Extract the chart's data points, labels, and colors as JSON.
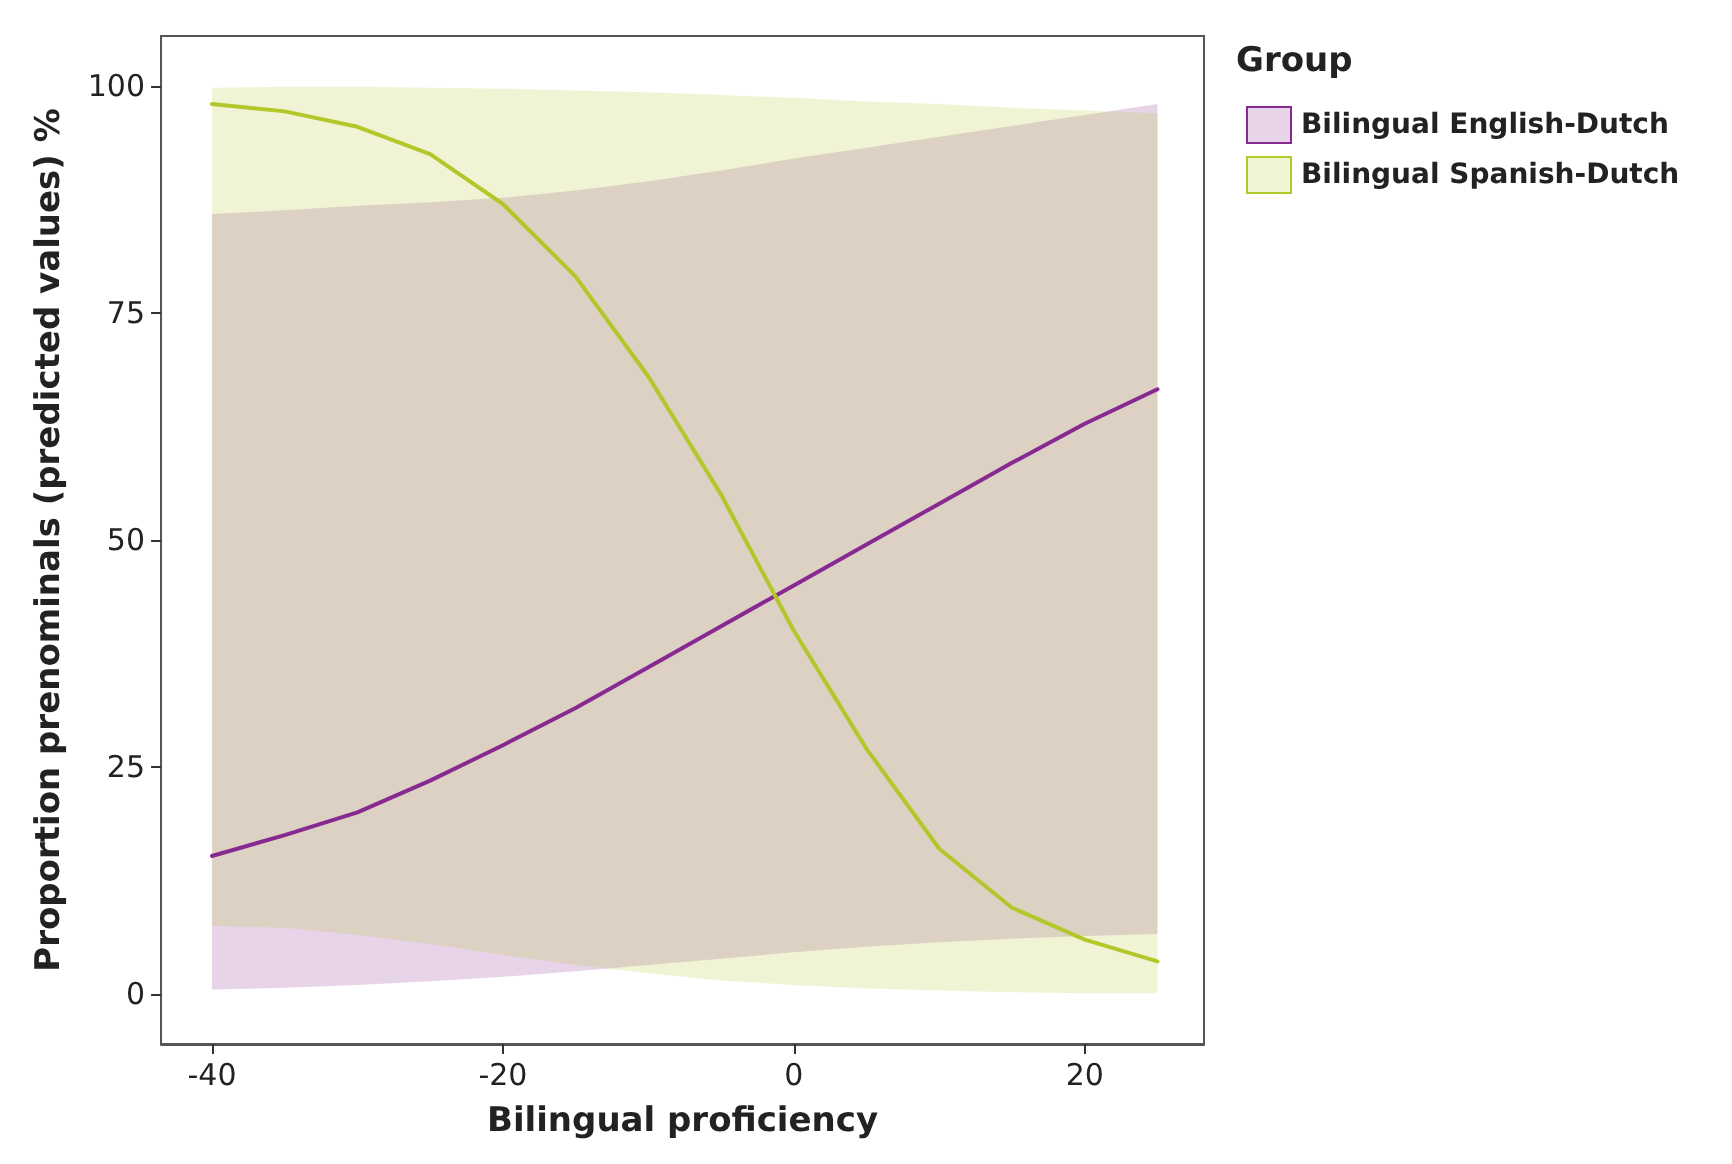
{
  "chart_data": {
    "type": "line",
    "xlabel": "Bilingual proficiency",
    "ylabel": "Proportion prenominals (predicted values) %",
    "legend_title": "Group",
    "legend": "top right",
    "grid": false,
    "x": [
      -40,
      -35,
      -30,
      -25,
      -20,
      -15,
      -10,
      -5,
      0,
      5,
      10,
      15,
      20,
      25
    ],
    "xlim": [
      -43.5,
      28.2
    ],
    "xticks": [
      -40,
      -20,
      0,
      20
    ],
    "ylim": [
      -5.5,
      105.5
    ],
    "yticks": [
      0,
      25,
      50,
      75,
      100
    ],
    "series": [
      {
        "name": "Bilingual English-Dutch",
        "color": "#862a92",
        "values": [
          15.2,
          17.5,
          20,
          23.5,
          27.4,
          31.5,
          36,
          40.5,
          45,
          49.5,
          54,
          58.5,
          62.8,
          66.6
        ],
        "lower": [
          0.5,
          0.7,
          1,
          1.4,
          1.9,
          2.5,
          3.2,
          3.9,
          4.6,
          5.2,
          5.7,
          6.1,
          6.4,
          6.6
        ],
        "upper": [
          85.9,
          86.3,
          86.8,
          87.2,
          87.7,
          88.5,
          89.5,
          90.7,
          92,
          93.2,
          94.4,
          95.6,
          96.8,
          98
        ]
      },
      {
        "name": "Bilingual Spanish-Dutch",
        "color": "#b3c72b",
        "values": [
          98,
          97.2,
          95.5,
          92.5,
          87,
          79,
          68,
          55,
          40,
          27,
          16,
          9.5,
          6,
          3.6
        ],
        "lower": [
          7.5,
          7.3,
          6.5,
          5.5,
          4.3,
          3.2,
          2.3,
          1.5,
          1,
          0.6,
          0.4,
          0.2,
          0.1,
          0.1
        ],
        "upper": [
          99.8,
          99.9,
          99.9,
          99.8,
          99.7,
          99.5,
          99.3,
          99,
          98.7,
          98.3,
          98,
          97.6,
          97.3,
          97
        ]
      }
    ]
  }
}
